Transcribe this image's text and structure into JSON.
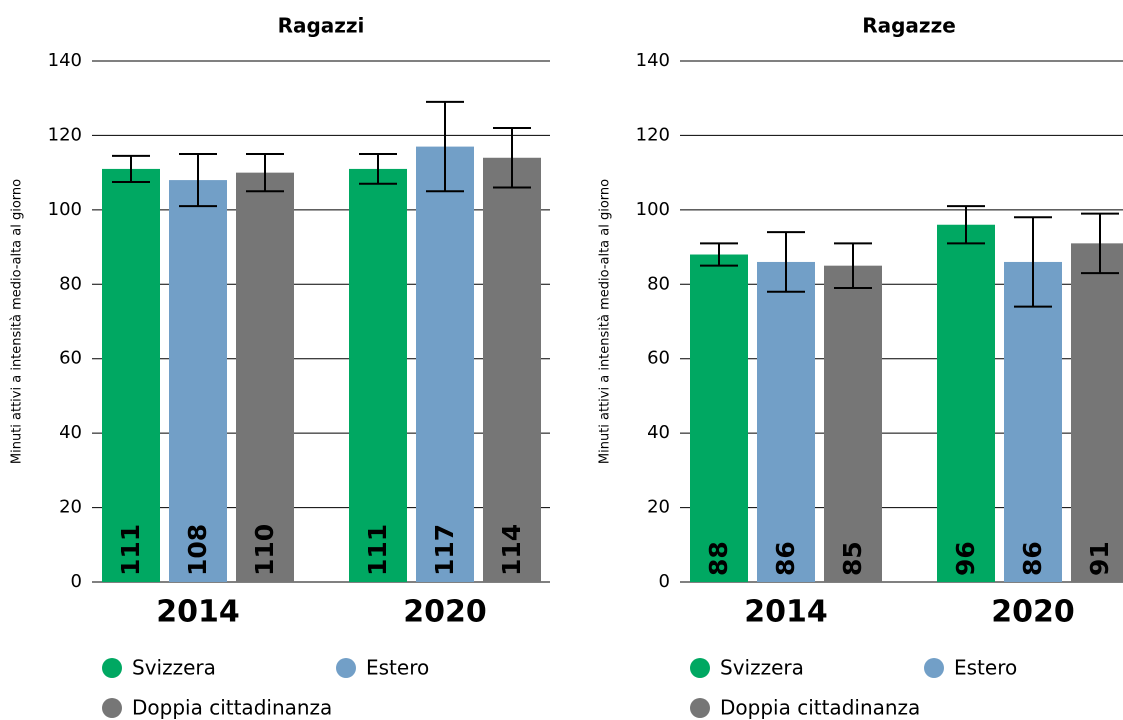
{
  "chart_data": [
    {
      "type": "bar",
      "title": "Ragazzi",
      "ylabel": "Minuti attivi a intensità medio-alta al giorno",
      "categories": [
        "2014",
        "2020"
      ],
      "series": [
        {
          "name": "Svizzera",
          "color": "#00a862",
          "values": [
            111,
            111
          ],
          "errors": [
            3.5,
            4
          ]
        },
        {
          "name": "Estero",
          "color": "#729fc7",
          "values": [
            108,
            117
          ],
          "errors": [
            7,
            12
          ]
        },
        {
          "name": "Doppia cittadinanza",
          "color": "#767676",
          "values": [
            110,
            114
          ],
          "errors": [
            5,
            8
          ]
        }
      ],
      "ylim": [
        0,
        140
      ],
      "yticks": [
        0,
        20,
        40,
        60,
        80,
        100,
        120,
        140
      ],
      "grid": true
    },
    {
      "type": "bar",
      "title": "Ragazze",
      "ylabel": "Minuti attivi a intensità medio-alta al giorno",
      "categories": [
        "2014",
        "2020"
      ],
      "series": [
        {
          "name": "Svizzera",
          "color": "#00a862",
          "values": [
            88,
            96
          ],
          "errors": [
            3,
            5
          ]
        },
        {
          "name": "Estero",
          "color": "#729fc7",
          "values": [
            86,
            86
          ],
          "errors": [
            8,
            12
          ]
        },
        {
          "name": "Doppia cittadinanza",
          "color": "#767676",
          "values": [
            85,
            91
          ],
          "errors": [
            6,
            8
          ]
        }
      ],
      "ylim": [
        0,
        140
      ],
      "yticks": [
        0,
        20,
        40,
        60,
        80,
        100,
        120,
        140
      ],
      "grid": true
    }
  ]
}
